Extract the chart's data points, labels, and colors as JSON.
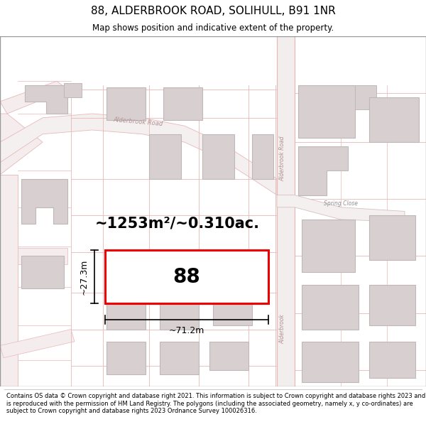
{
  "title": "88, ALDERBROOK ROAD, SOLIHULL, B91 1NR",
  "subtitle": "Map shows position and indicative extent of the property.",
  "footer": "Contains OS data © Crown copyright and database right 2021. This information is subject to Crown copyright and database rights 2023 and is reproduced with the permission of HM Land Registry. The polygons (including the associated geometry, namely x, y co-ordinates) are subject to Crown copyright and database rights 2023 Ordnance Survey 100026316.",
  "area_label": "~1253m²/~0.310ac.",
  "number_label": "88",
  "width_label": "~71.2m",
  "height_label": "~27.3m",
  "map_bg": "#ffffff",
  "road_fill": "#f5eded",
  "road_stroke": "#e8b8b8",
  "building_fill": "#d8d0d0",
  "building_stroke": "#c0b8b8",
  "highlight_color": "#ee0000",
  "road_text_color": "#b09090",
  "spring_close_color": "#909090"
}
